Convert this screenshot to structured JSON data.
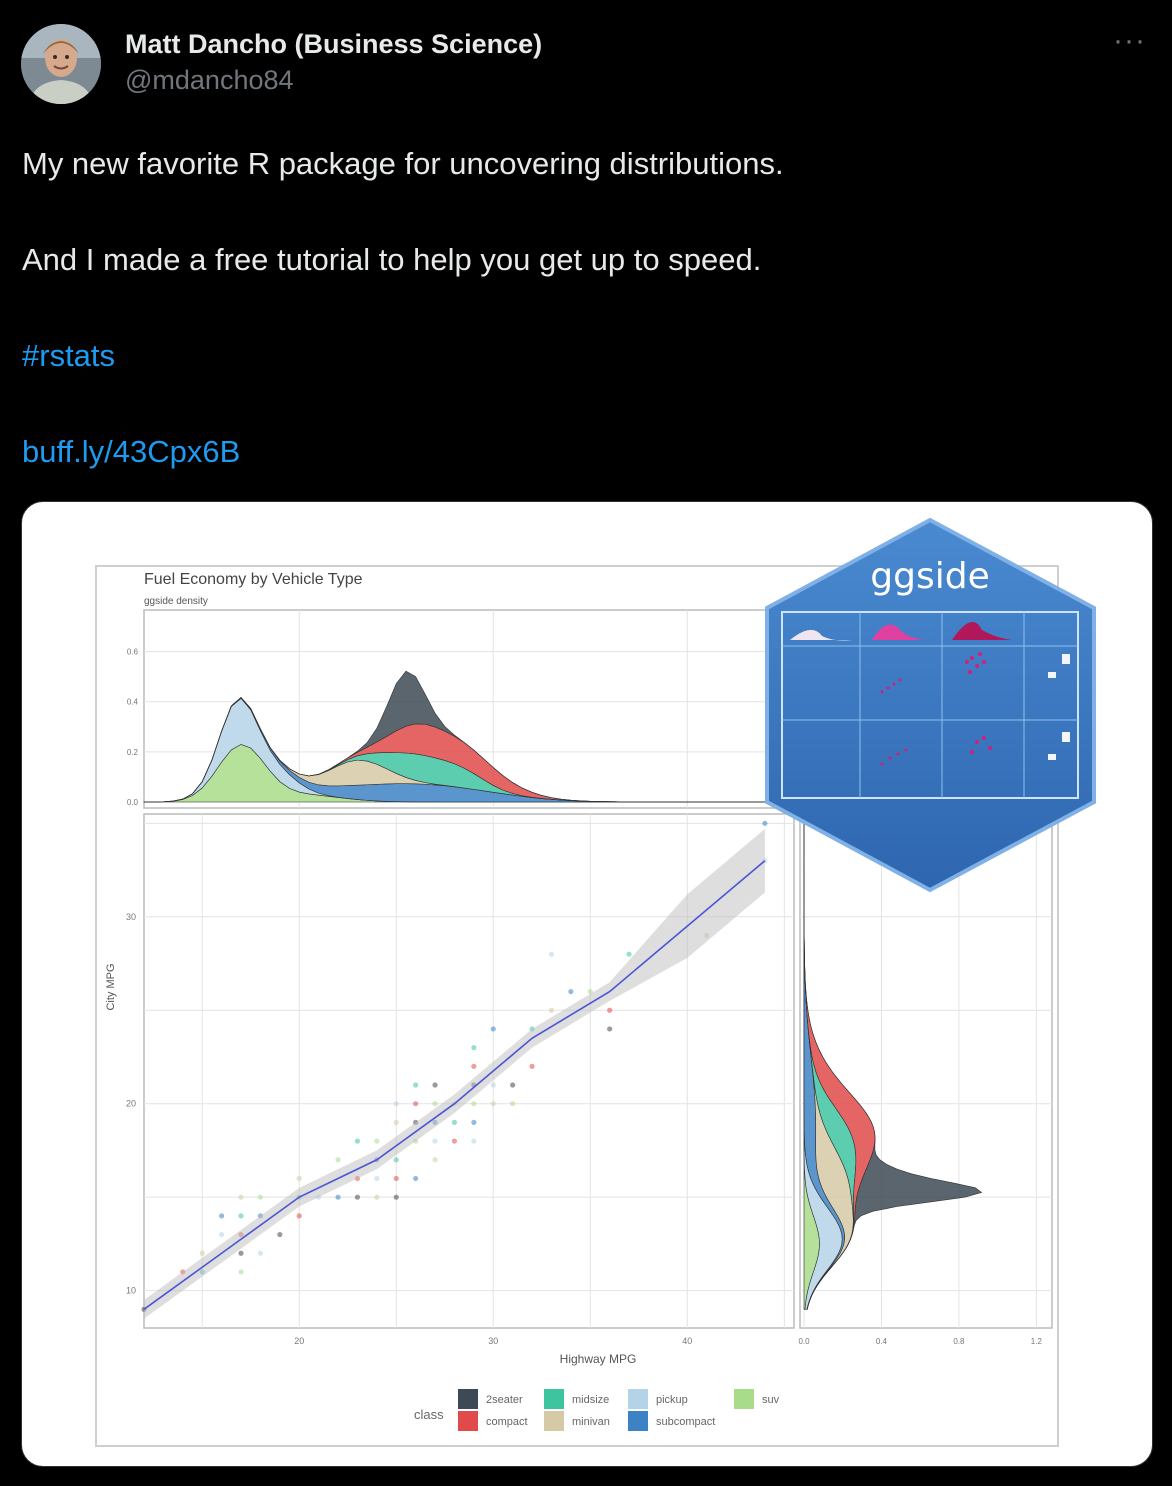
{
  "author": {
    "name": "Matt Dancho (Business Science)",
    "handle": "@mdancho84",
    "avatar_icon": "avatar-photo"
  },
  "more_icon": "more-horizontal-icon",
  "tweet": {
    "line1": "My new favorite R package for uncovering distributions.",
    "line2": "And I made a free tutorial to help you get up to speed.",
    "hashtag": "#rstats",
    "url": "buff.ly/43Cpx6B"
  },
  "colors": {
    "background": "#000000",
    "text": "#e7e9ea",
    "secondary": "#71767b",
    "link": "#1d9bf0"
  },
  "chart_data": {
    "type": "scatter",
    "title": "Fuel Economy by Vehicle Type",
    "subtitle": "ggside density",
    "xlabel": "Highway MPG",
    "ylabel": "City MPG",
    "xlim": [
      12,
      45.5
    ],
    "ylim": [
      8,
      35.5
    ],
    "x_ticks": [
      "20",
      "30",
      "40"
    ],
    "y_ticks": [
      "10",
      "20",
      "30"
    ],
    "top_density_ticks": [
      "0.0",
      "0.2",
      "0.4",
      "0.6"
    ],
    "side_density_ticks": [
      "0.0",
      "0.4",
      "0.8",
      "1.2"
    ],
    "grid": true,
    "legend_title": "class",
    "legend_position": "bottom",
    "classes": [
      {
        "name": "2seater",
        "color": "#3d4a55"
      },
      {
        "name": "compact",
        "color": "#e04a4a"
      },
      {
        "name": "midsize",
        "color": "#3fc4a0"
      },
      {
        "name": "minivan",
        "color": "#d6c9a5"
      },
      {
        "name": "pickup",
        "color": "#b5d3e7"
      },
      {
        "name": "subcompact",
        "color": "#3d82c4"
      },
      {
        "name": "suv",
        "color": "#a8dc8a"
      }
    ],
    "points": [
      [
        12,
        9
      ],
      [
        14,
        11
      ],
      [
        15,
        11
      ],
      [
        15,
        12
      ],
      [
        16,
        13
      ],
      [
        16,
        14
      ],
      [
        17,
        11
      ],
      [
        17,
        12
      ],
      [
        17,
        13
      ],
      [
        17,
        14
      ],
      [
        17,
        15
      ],
      [
        18,
        12
      ],
      [
        18,
        14
      ],
      [
        18,
        15
      ],
      [
        19,
        13
      ],
      [
        20,
        14
      ],
      [
        20,
        15
      ],
      [
        20,
        16
      ],
      [
        21,
        15
      ],
      [
        22,
        15
      ],
      [
        22,
        17
      ],
      [
        23,
        15
      ],
      [
        23,
        16
      ],
      [
        23,
        18
      ],
      [
        24,
        15
      ],
      [
        24,
        16
      ],
      [
        24,
        17
      ],
      [
        24,
        18
      ],
      [
        25,
        15
      ],
      [
        25,
        16
      ],
      [
        25,
        17
      ],
      [
        25,
        19
      ],
      [
        25,
        20
      ],
      [
        26,
        16
      ],
      [
        26,
        18
      ],
      [
        26,
        19
      ],
      [
        26,
        20
      ],
      [
        26,
        21
      ],
      [
        27,
        17
      ],
      [
        27,
        18
      ],
      [
        27,
        19
      ],
      [
        27,
        20
      ],
      [
        27,
        21
      ],
      [
        28,
        18
      ],
      [
        28,
        19
      ],
      [
        28,
        20
      ],
      [
        29,
        18
      ],
      [
        29,
        19
      ],
      [
        29,
        20
      ],
      [
        29,
        21
      ],
      [
        29,
        22
      ],
      [
        29,
        23
      ],
      [
        30,
        20
      ],
      [
        30,
        21
      ],
      [
        30,
        24
      ],
      [
        31,
        20
      ],
      [
        31,
        21
      ],
      [
        32,
        22
      ],
      [
        32,
        24
      ],
      [
        33,
        25
      ],
      [
        33,
        28
      ],
      [
        34,
        26
      ],
      [
        35,
        26
      ],
      [
        36,
        24
      ],
      [
        36,
        25
      ],
      [
        37,
        28
      ],
      [
        41,
        29
      ],
      [
        44,
        33
      ],
      [
        44,
        35
      ]
    ],
    "trend": {
      "name": "loess",
      "x": [
        12,
        16,
        20,
        24,
        28,
        32,
        36,
        40,
        44
      ],
      "y": [
        9,
        12,
        15,
        17,
        20,
        23.5,
        26,
        29.5,
        33
      ]
    },
    "badge_text": "ggside"
  }
}
